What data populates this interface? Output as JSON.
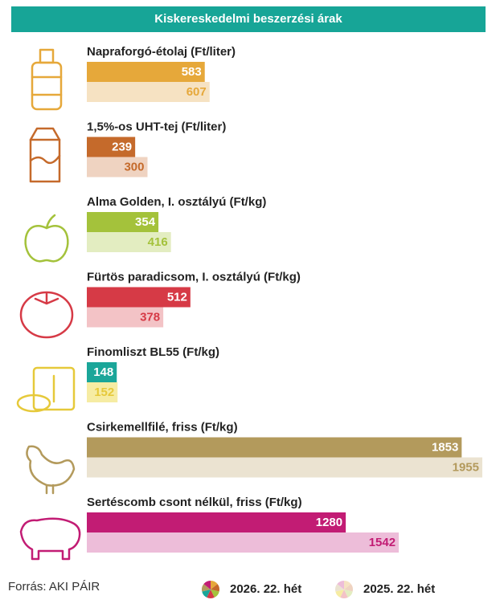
{
  "chart_data": {
    "type": "bar",
    "title": "Kiskereskedelmi beszerzési árak",
    "categories": [
      "Napraforgó-étolaj (Ft/liter)",
      "1,5%-os UHT-tej (Ft/liter)",
      "Alma Golden, I. osztályú (Ft/kg)",
      "Fürtös paradicsom, I. osztályú (Ft/kg)",
      "Finomliszt BL55 (Ft/kg)",
      "Csirkemellfilé, friss (Ft/kg)",
      "Sertéscomb csont nélkül, friss (Ft/kg)"
    ],
    "series": [
      {
        "name": "2026. 22. hét",
        "colors": [
          "#e6a83a",
          "#c56a2b",
          "#a4c23b",
          "#d63a46",
          "#1aa699",
          "#b39a5c",
          "#c21c74"
        ],
        "values": [
          583,
          239,
          354,
          512,
          148,
          1853,
          1280
        ]
      },
      {
        "name": "2025. 22. hét",
        "colors": [
          "#f6e2c2",
          "#efd3c1",
          "#e3edc1",
          "#f3c3c6",
          "#f6eca3",
          "#ebe3d1",
          "#edbdd9"
        ],
        "label_colors": [
          "#e6a83a",
          "#c56a2b",
          "#a4c23b",
          "#d63a46",
          "#e6c93a",
          "#b39a5c",
          "#c21c74"
        ],
        "values": [
          607,
          300,
          416,
          378,
          152,
          1955,
          1542
        ]
      }
    ],
    "title_color": "#17a597",
    "source": "Forrás: AKI PÁIR"
  }
}
